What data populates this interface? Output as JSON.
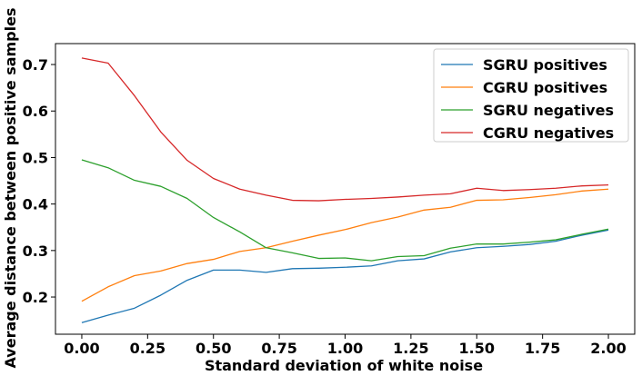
{
  "chart_data": {
    "type": "line",
    "xlabel": "Standard deviation of white noise",
    "ylabel": "Average distance between positive samples",
    "xlim": [
      -0.1,
      2.1
    ],
    "ylim": [
      0.12,
      0.745
    ],
    "xticks": [
      "0.00",
      "0.25",
      "0.50",
      "0.75",
      "1.00",
      "1.25",
      "1.50",
      "1.75",
      "2.00"
    ],
    "yticks": [
      "0.2",
      "0.3",
      "0.4",
      "0.5",
      "0.6",
      "0.7"
    ],
    "grid": false,
    "legend_position": "top-right",
    "x": [
      0.0,
      0.1,
      0.2,
      0.3,
      0.4,
      0.5,
      0.6,
      0.7,
      0.8,
      0.9,
      1.0,
      1.1,
      1.2,
      1.3,
      1.4,
      1.5,
      1.6,
      1.7,
      1.8,
      1.9,
      2.0
    ],
    "series": [
      {
        "name": "SGRU positives",
        "color": "#1f77b4",
        "values": [
          0.145,
          0.161,
          0.176,
          0.204,
          0.236,
          0.258,
          0.258,
          0.253,
          0.261,
          0.262,
          0.264,
          0.267,
          0.278,
          0.282,
          0.297,
          0.306,
          0.309,
          0.313,
          0.32,
          0.333,
          0.344
        ]
      },
      {
        "name": "CGRU positives",
        "color": "#ff7f0e",
        "values": [
          0.191,
          0.222,
          0.246,
          0.256,
          0.272,
          0.281,
          0.298,
          0.306,
          0.32,
          0.333,
          0.345,
          0.36,
          0.372,
          0.387,
          0.393,
          0.408,
          0.409,
          0.414,
          0.42,
          0.428,
          0.432
        ]
      },
      {
        "name": "SGRU negatives",
        "color": "#2ca02c",
        "values": [
          0.495,
          0.478,
          0.451,
          0.438,
          0.412,
          0.371,
          0.34,
          0.306,
          0.295,
          0.283,
          0.284,
          0.278,
          0.287,
          0.289,
          0.305,
          0.314,
          0.314,
          0.318,
          0.323,
          0.335,
          0.346
        ]
      },
      {
        "name": "CGRU negatives",
        "color": "#d62728",
        "values": [
          0.714,
          0.703,
          0.633,
          0.555,
          0.494,
          0.455,
          0.432,
          0.419,
          0.408,
          0.407,
          0.41,
          0.412,
          0.415,
          0.419,
          0.422,
          0.434,
          0.429,
          0.431,
          0.434,
          0.439,
          0.441
        ]
      }
    ]
  }
}
